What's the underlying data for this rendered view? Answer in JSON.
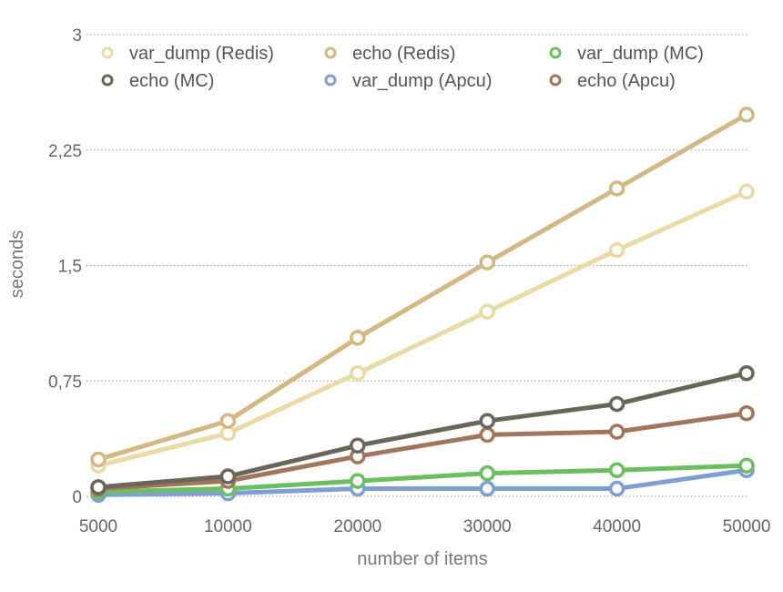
{
  "chart_data": {
    "type": "line",
    "title": "",
    "xlabel": "number of items",
    "ylabel": "seconds",
    "x": [
      5000,
      10000,
      20000,
      30000,
      40000,
      50000
    ],
    "x_tick_labels": [
      "5000",
      "10000",
      "20000",
      "30000",
      "40000",
      "50000"
    ],
    "y_ticks": [
      0,
      0.75,
      1.5,
      2.25,
      3
    ],
    "y_tick_labels": [
      "0",
      "0,75",
      "1,5",
      "2,25",
      "3"
    ],
    "ylim": [
      0,
      3
    ],
    "grid": "horizontal dotted",
    "legend_position": "top-left",
    "series": [
      {
        "name": "var_dump (Redis)",
        "color": "#eadba6",
        "values": [
          0.2,
          0.41,
          0.8,
          1.2,
          1.6,
          1.98
        ]
      },
      {
        "name": "echo (Redis)",
        "color": "#d4b883",
        "values": [
          0.24,
          0.49,
          1.03,
          1.52,
          2.0,
          2.48
        ]
      },
      {
        "name": "var_dump (MC)",
        "color": "#6cbf5e",
        "values": [
          0.03,
          0.05,
          0.1,
          0.15,
          0.17,
          0.2
        ]
      },
      {
        "name": "echo (MC)",
        "color": "#6b665b",
        "values": [
          0.06,
          0.13,
          0.33,
          0.49,
          0.6,
          0.8
        ]
      },
      {
        "name": "var_dump (Apcu)",
        "color": "#7f9fd2",
        "values": [
          0.01,
          0.02,
          0.05,
          0.05,
          0.05,
          0.17
        ]
      },
      {
        "name": "echo (Apcu)",
        "color": "#a0765c",
        "values": [
          0.05,
          0.1,
          0.26,
          0.4,
          0.42,
          0.54
        ]
      }
    ]
  }
}
